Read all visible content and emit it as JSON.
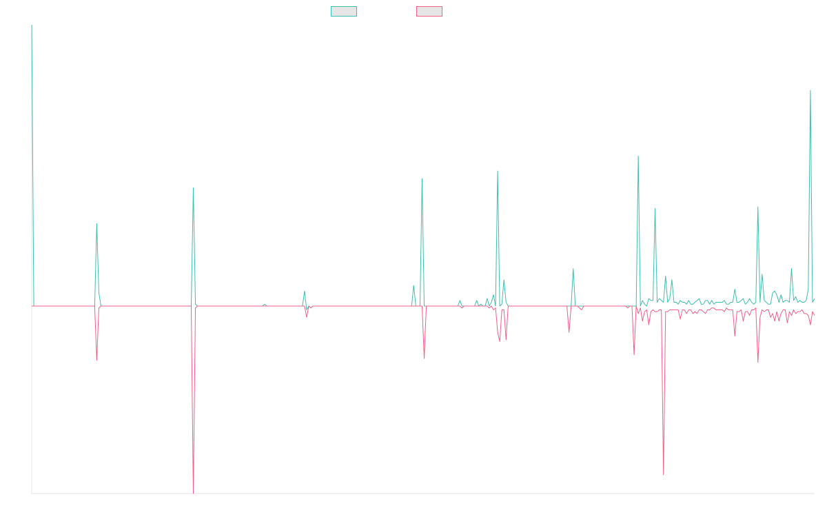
{
  "chart_data": {
    "type": "line",
    "title": "",
    "xlabel": "",
    "ylabel": "",
    "ylim": [
      -1.0,
      1.5
    ],
    "grid": false,
    "legend_position": "top-center",
    "series": [
      {
        "color": "#3cbfae",
        "values": [
          1.5,
          0,
          0,
          0,
          0,
          0,
          0,
          0,
          0,
          0,
          0,
          0,
          0,
          0,
          0,
          0,
          0,
          0,
          0,
          0,
          0,
          0,
          0,
          0,
          0,
          0,
          0,
          0,
          0,
          0,
          0,
          0.44,
          0.07,
          0,
          0,
          0,
          0,
          0,
          0,
          0,
          0,
          0,
          0,
          0,
          0,
          0,
          0,
          0,
          0,
          0,
          0,
          0,
          0,
          0,
          0,
          0,
          0,
          0,
          0,
          0,
          0,
          0,
          0,
          0,
          0,
          0,
          0,
          0,
          0,
          0,
          0,
          0,
          0,
          0,
          0,
          0,
          0,
          0.63,
          0.01,
          0,
          0,
          0,
          0,
          0,
          0,
          0,
          0,
          0,
          0,
          0,
          0,
          0,
          0,
          0,
          0,
          0,
          0,
          0,
          0,
          0,
          0,
          0,
          0,
          0,
          0,
          0,
          0,
          0,
          0,
          0,
          0,
          0.01,
          0,
          0,
          0,
          0,
          0,
          0,
          0,
          0,
          0,
          0,
          0,
          0,
          0,
          0,
          0,
          0,
          0,
          0,
          0.08,
          -0.02,
          0,
          -0.01,
          0,
          0,
          0,
          0,
          0,
          0,
          0,
          0,
          0,
          0,
          0,
          0,
          0,
          0,
          0,
          0,
          0,
          0,
          0,
          0,
          0,
          0,
          0,
          0,
          0,
          0,
          0,
          0,
          0,
          0,
          0,
          0,
          0,
          0,
          0,
          0,
          0,
          0,
          0,
          0,
          0,
          0,
          0,
          0,
          0,
          0,
          0,
          0,
          0.11,
          0,
          0,
          0,
          0.68,
          0,
          0,
          0,
          0,
          0,
          0,
          0,
          0,
          0,
          0,
          0,
          0,
          0,
          0,
          0,
          0,
          0,
          0.03,
          0,
          0,
          0,
          0,
          0,
          0,
          0,
          0.03,
          0,
          0.01,
          0,
          0,
          0.04,
          0,
          0.02,
          0.06,
          0,
          0.72,
          0,
          0.01,
          0.14,
          0.02,
          0,
          0,
          0,
          0,
          0,
          0,
          0,
          0,
          0,
          0,
          0,
          0,
          0,
          0,
          0,
          0,
          0,
          0,
          0,
          0,
          0,
          0,
          0,
          0,
          0,
          0,
          0,
          0,
          0,
          0,
          0,
          0.2,
          0,
          0,
          0,
          0,
          0,
          0,
          0,
          0,
          0,
          0,
          0,
          0,
          0,
          0,
          0,
          0,
          0,
          0,
          0,
          0,
          0,
          0,
          0,
          0,
          0,
          0,
          0,
          0,
          0,
          0,
          0.8,
          0,
          0.03,
          0.01,
          0,
          0.04,
          0.03,
          0.03,
          0.52,
          0.02,
          0.04,
          0.03,
          0.02,
          0.16,
          0.02,
          0.04,
          0.14,
          0.02,
          0.02,
          0.01,
          0.03,
          0.02,
          0.02,
          0.01,
          0.03,
          0.01,
          0.01,
          0.02,
          0.03,
          0.04,
          0.01,
          0.01,
          0.03,
          0.03,
          0.01,
          0.03,
          0.01,
          0.02,
          0.02,
          0.02,
          0.02,
          0.03,
          0.01,
          0.01,
          0.02,
          0.02,
          0.09,
          0.02,
          0.02,
          0.03,
          0.04,
          0.01,
          0.02,
          0.04,
          0.02,
          0.01,
          0.02,
          0.53,
          0.02,
          0.17,
          0.03,
          0.02,
          0.01,
          0.01,
          0.07,
          0.08,
          0.06,
          0.02,
          0.06,
          0.02,
          0.03,
          0.03,
          0.02,
          0.2,
          0.03,
          0.05,
          0.02,
          0.03,
          0.02,
          0.02,
          0.03,
          0.09,
          1.15,
          0.02,
          0.04
        ]
      },
      {
        "color": "#f25e86",
        "values": [
          0,
          0,
          0,
          0,
          0,
          0,
          0,
          0,
          0,
          0,
          0,
          0,
          0,
          0,
          0,
          0,
          0,
          0,
          0,
          0,
          0,
          0,
          0,
          0,
          0,
          0,
          0,
          0,
          0,
          0,
          0,
          -0.29,
          -0.01,
          0,
          0,
          0,
          0,
          0,
          0,
          0,
          0,
          0,
          0,
          0,
          0,
          0,
          0,
          0,
          0,
          0,
          0,
          0,
          0,
          0,
          0,
          0,
          0,
          0,
          0,
          0,
          0,
          0,
          0,
          0,
          0,
          0,
          0,
          0,
          0,
          0,
          0,
          0,
          0,
          0,
          0,
          0,
          0,
          -1.0,
          -0.01,
          0,
          0,
          0,
          0,
          0,
          0,
          0,
          0,
          0,
          0,
          0,
          0,
          0,
          0,
          0,
          0,
          0,
          0,
          0,
          0,
          0,
          0,
          0,
          0,
          0,
          0,
          0,
          0,
          0,
          0,
          0,
          0,
          0,
          0,
          0,
          0,
          0,
          0,
          0,
          0,
          0,
          0,
          0,
          0,
          0,
          0,
          0,
          0,
          0,
          0,
          0,
          0,
          -0.06,
          0,
          -0.01,
          0,
          0,
          0,
          0,
          0,
          0,
          0,
          0,
          0,
          0,
          0,
          0,
          0,
          0,
          0,
          0,
          0,
          0,
          0,
          0,
          0,
          0,
          0,
          0,
          0,
          0,
          0,
          0,
          0,
          0,
          0,
          0,
          0,
          0,
          0,
          0,
          0,
          0,
          0,
          0,
          0,
          0,
          0,
          0,
          0,
          0,
          0,
          0,
          0,
          0,
          0,
          0,
          0,
          -0.28,
          0,
          0,
          0,
          0,
          0,
          0,
          0,
          0,
          0,
          0,
          0,
          0,
          0,
          0,
          0,
          0,
          0,
          -0.01,
          0,
          0,
          0,
          0,
          0,
          0,
          0,
          0,
          0,
          0,
          0,
          0,
          -0.01,
          0,
          -0.02,
          -0.01,
          -0.14,
          -0.19,
          -0.02,
          -0.02,
          -0.18,
          0,
          0,
          0,
          0,
          0,
          0,
          0,
          0,
          0,
          0,
          0,
          0,
          0,
          0,
          0,
          0,
          0,
          0,
          0,
          0,
          0,
          0,
          0,
          0,
          0,
          0,
          0,
          0,
          0,
          -0.14,
          0,
          0,
          0,
          0,
          -0.01,
          -0.02,
          0,
          0,
          0,
          0,
          0,
          0,
          0,
          0,
          0,
          0,
          0,
          0,
          0,
          0,
          0,
          0,
          0,
          0,
          0,
          0,
          0,
          -0.01,
          0,
          0,
          -0.26,
          0,
          -0.04,
          -0.01,
          -0.08,
          -0.03,
          -0.02,
          -0.1,
          -0.03,
          -0.02,
          -0.03,
          -0.03,
          -0.02,
          -0.02,
          -0.9,
          -0.03,
          -0.03,
          -0.02,
          -0.02,
          -0.02,
          -0.02,
          -0.02,
          -0.07,
          -0.02,
          -0.02,
          -0.04,
          -0.02,
          -0.02,
          -0.04,
          -0.03,
          -0.04,
          -0.02,
          -0.02,
          -0.03,
          -0.04,
          -0.02,
          -0.02,
          -0.01,
          -0.01,
          -0.02,
          -0.02,
          -0.02,
          -0.02,
          -0.03,
          -0.01,
          -0.02,
          -0.02,
          -0.02,
          -0.16,
          -0.03,
          -0.03,
          -0.02,
          -0.08,
          -0.03,
          -0.03,
          -0.05,
          -0.02,
          -0.02,
          -0.01,
          -0.3,
          -0.06,
          -0.02,
          -0.03,
          -0.02,
          -0.02,
          -0.06,
          -0.04,
          -0.08,
          -0.03,
          -0.08,
          -0.04,
          -0.02,
          -0.02,
          -0.09,
          -0.03,
          -0.05,
          -0.02,
          -0.04,
          -0.03,
          -0.03,
          -0.02,
          -0.04,
          -0.04,
          -0.05,
          -0.1,
          -0.03,
          -0.05
        ]
      }
    ]
  }
}
